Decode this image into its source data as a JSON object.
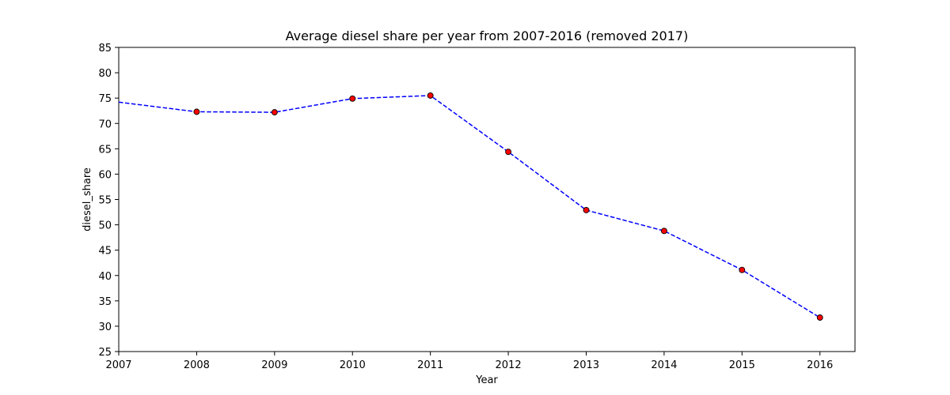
{
  "chart_data": {
    "type": "line",
    "title": "Average diesel share per year from 2007-2016 (removed 2017)",
    "xlabel": "Year",
    "ylabel": "diesel_share",
    "x": [
      2007,
      2008,
      2009,
      2010,
      2011,
      2012,
      2013,
      2014,
      2015,
      2016
    ],
    "series": [
      {
        "values": [
          74.2,
          72.3,
          72.2,
          74.9,
          75.5,
          64.4,
          52.9,
          48.8,
          41.1,
          31.7
        ],
        "line_color": "#0000ff",
        "line_style": "dashed",
        "marker": "circle",
        "marker_color": "#ff0000",
        "marker_edge_color": "#000000"
      }
    ],
    "xlim": [
      2007,
      2016.45
    ],
    "ylim": [
      25,
      85
    ],
    "xticks": [
      2007,
      2008,
      2009,
      2010,
      2011,
      2012,
      2013,
      2014,
      2015,
      2016
    ],
    "yticks": [
      25,
      30,
      35,
      40,
      45,
      50,
      55,
      60,
      65,
      70,
      75,
      80,
      85
    ],
    "grid": false
  }
}
